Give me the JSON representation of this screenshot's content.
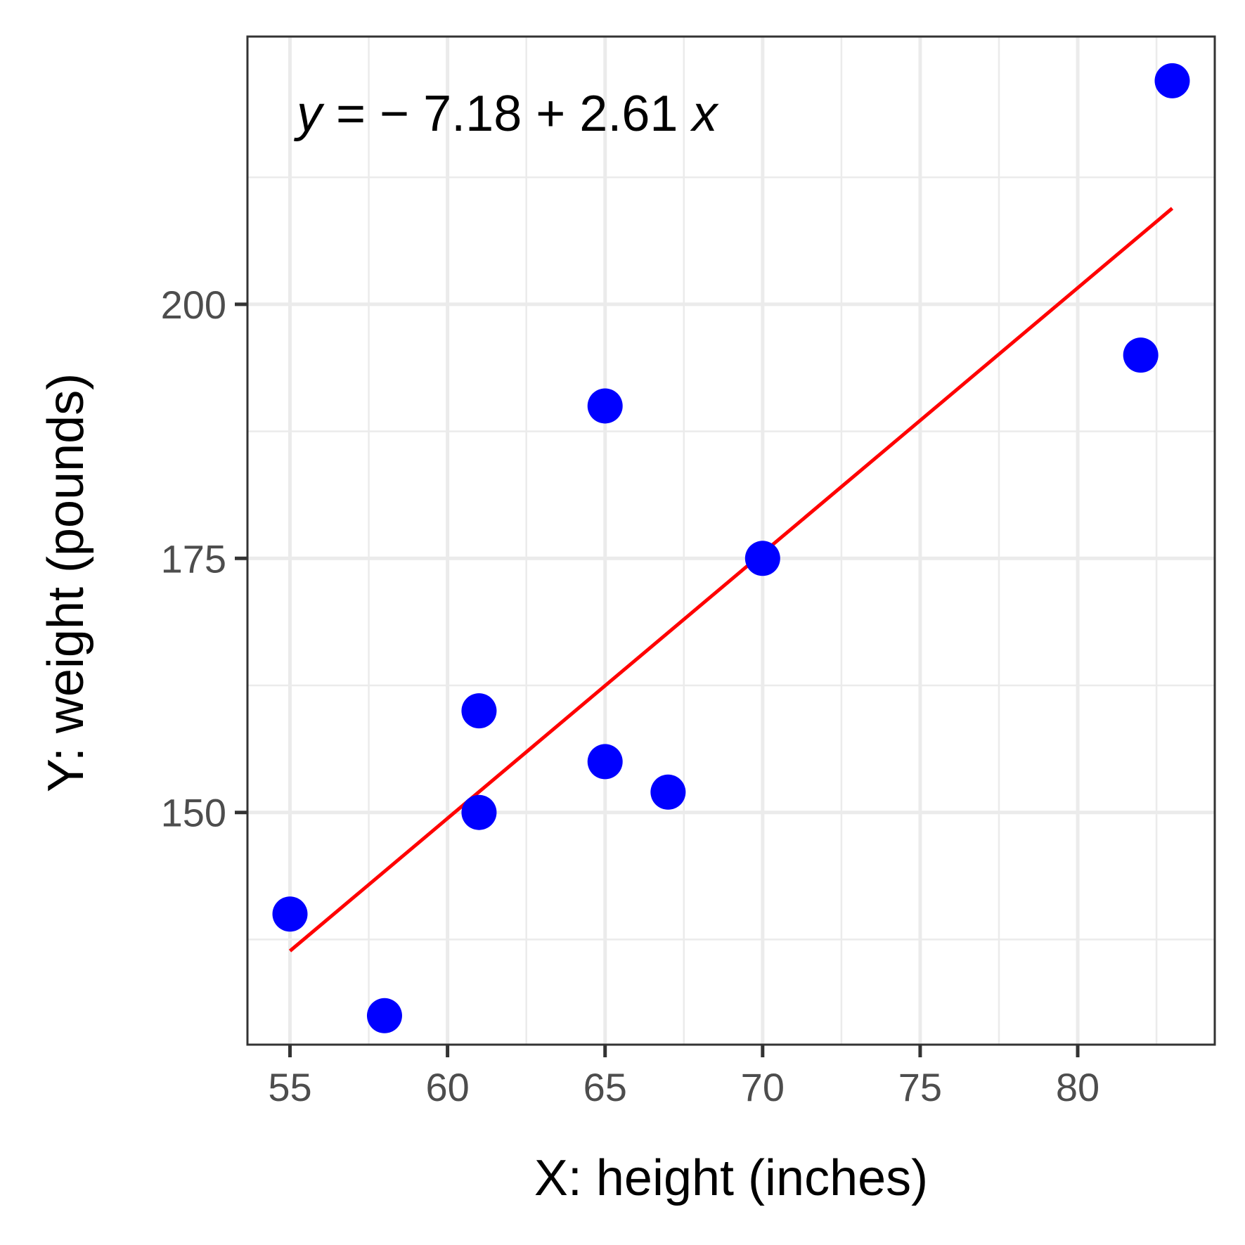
{
  "chart_data": {
    "type": "scatter",
    "title": "",
    "xlabel": "X: height (inches)",
    "ylabel": "Y: weight (pounds)",
    "xlim": [
      53.65,
      84.35
    ],
    "ylim": [
      127.15,
      226.35
    ],
    "x_ticks": [
      55,
      60,
      65,
      70,
      75,
      80
    ],
    "x_tick_labels": [
      "55",
      "60",
      "65",
      "70",
      "75",
      "80"
    ],
    "y_ticks": [
      150,
      175,
      200
    ],
    "y_tick_labels": [
      "150",
      "175",
      "200"
    ],
    "grid": true,
    "legend": "none",
    "points": [
      {
        "x": 55,
        "y": 140
      },
      {
        "x": 58,
        "y": 130
      },
      {
        "x": 61,
        "y": 150
      },
      {
        "x": 61,
        "y": 160
      },
      {
        "x": 65,
        "y": 155
      },
      {
        "x": 65,
        "y": 190
      },
      {
        "x": 67,
        "y": 152
      },
      {
        "x": 70,
        "y": 175
      },
      {
        "x": 82,
        "y": 195
      },
      {
        "x": 83,
        "y": 222
      }
    ],
    "fit_line": {
      "intercept": -7.18,
      "slope": 2.61,
      "x_range": [
        55,
        83
      ]
    },
    "annotation": {
      "parts": [
        {
          "t": "y",
          "italic": true
        },
        {
          "t": " = − 7.18 + 2.61 ",
          "italic": false
        },
        {
          "t": "x",
          "italic": true
        }
      ]
    },
    "colors": {
      "points": "#0000ff",
      "fit_line": "#ff0000",
      "grid": "#ebebeb",
      "panel_border": "#333333"
    }
  }
}
